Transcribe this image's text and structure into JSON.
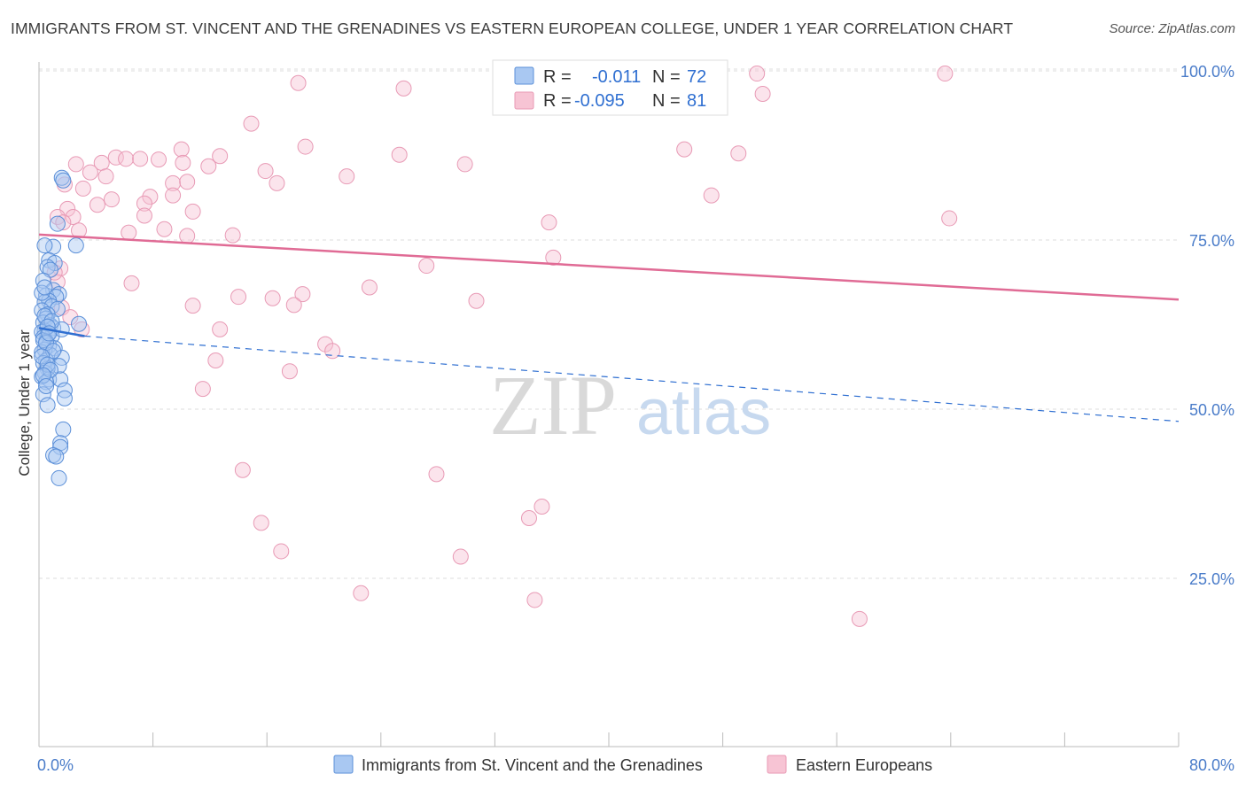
{
  "header": {
    "title": "IMMIGRANTS FROM ST. VINCENT AND THE GRENADINES VS EASTERN EUROPEAN COLLEGE, UNDER 1 YEAR CORRELATION CHART",
    "source": "Source: ZipAtlas.com"
  },
  "watermark": {
    "zip": "ZIP",
    "atlas": "atlas"
  },
  "colors": {
    "blue_fill": "#a9c8f2",
    "blue_stroke": "#5b8fd8",
    "blue_line": "#2f6fd1",
    "pink_fill": "#f7c4d4",
    "pink_stroke": "#e89ab5",
    "pink_line": "#e06b95",
    "tick_label": "#4a7cc9",
    "grid": "#dddddd"
  },
  "chart_data": {
    "type": "scatter",
    "title": "IMMIGRANTS FROM ST. VINCENT AND THE GRENADINES VS EASTERN EUROPEAN COLLEGE, UNDER 1 YEAR CORRELATION CHART",
    "xlabel": "",
    "ylabel": "College, Under 1 year",
    "xlim": [
      0,
      80
    ],
    "ylim": [
      0,
      102
    ],
    "x_tick_labels": [
      "0.0%",
      "80.0%"
    ],
    "y_ticks": [
      {
        "value": 25,
        "label": "25.0%"
      },
      {
        "value": 50,
        "label": "50.0%"
      },
      {
        "value": 75,
        "label": "75.0%"
      },
      {
        "value": 100,
        "label": "100.0%"
      }
    ],
    "legend": {
      "position": "bottom",
      "entries": [
        "Immigrants from St. Vincent and the Grenadines",
        "Eastern Europeans"
      ]
    },
    "stats": [
      {
        "r_label": "R =",
        "r_value": "-0.011",
        "n_label": "N =",
        "n_value": "72"
      },
      {
        "r_label": "R =",
        "r_value": "-0.095",
        "n_label": "N =",
        "n_value": "81"
      }
    ],
    "series": [
      {
        "name": "Immigrants from St. Vincent and the Grenadines",
        "color": "blue",
        "trend_solid": {
          "x": [
            0.0,
            3.2
          ],
          "y": [
            62.0,
            60.8
          ]
        },
        "trend_dashed": {
          "x": [
            3.2,
            80.0
          ],
          "y": [
            60.8,
            48.2
          ]
        },
        "points": [
          [
            1.6,
            84.2
          ],
          [
            1.7,
            83.8
          ],
          [
            1.3,
            77.4
          ],
          [
            1.0,
            74.0
          ],
          [
            2.6,
            74.2
          ],
          [
            0.4,
            74.2
          ],
          [
            0.7,
            72.0
          ],
          [
            1.1,
            71.6
          ],
          [
            0.6,
            71.0
          ],
          [
            0.8,
            70.6
          ],
          [
            0.3,
            69.0
          ],
          [
            1.0,
            67.6
          ],
          [
            1.4,
            67.0
          ],
          [
            0.5,
            66.8
          ],
          [
            1.2,
            66.6
          ],
          [
            0.7,
            66.0
          ],
          [
            0.4,
            65.8
          ],
          [
            0.9,
            65.2
          ],
          [
            1.3,
            64.8
          ],
          [
            0.2,
            64.6
          ],
          [
            0.6,
            64.0
          ],
          [
            0.5,
            63.4
          ],
          [
            0.3,
            62.8
          ],
          [
            0.8,
            62.4
          ],
          [
            1.0,
            62.0
          ],
          [
            0.4,
            61.6
          ],
          [
            0.2,
            61.4
          ],
          [
            0.6,
            61.0
          ],
          [
            0.9,
            60.8
          ],
          [
            0.3,
            60.6
          ],
          [
            1.6,
            61.8
          ],
          [
            2.8,
            62.6
          ],
          [
            0.5,
            60.0
          ],
          [
            0.7,
            59.4
          ],
          [
            1.1,
            59.0
          ],
          [
            0.4,
            58.8
          ],
          [
            0.2,
            58.4
          ],
          [
            0.8,
            58.0
          ],
          [
            1.6,
            57.6
          ],
          [
            0.5,
            57.2
          ],
          [
            0.3,
            56.8
          ],
          [
            1.4,
            56.4
          ],
          [
            0.6,
            56.0
          ],
          [
            0.4,
            55.4
          ],
          [
            0.2,
            54.8
          ],
          [
            0.7,
            54.4
          ],
          [
            1.5,
            54.4
          ],
          [
            0.5,
            54.0
          ],
          [
            1.8,
            52.8
          ],
          [
            0.3,
            52.2
          ],
          [
            1.8,
            51.6
          ],
          [
            0.6,
            50.6
          ],
          [
            1.7,
            47.0
          ],
          [
            1.5,
            45.0
          ],
          [
            1.5,
            44.4
          ],
          [
            1.0,
            43.2
          ],
          [
            1.2,
            43.0
          ],
          [
            1.4,
            39.8
          ],
          [
            0.4,
            63.8
          ],
          [
            0.9,
            63.0
          ],
          [
            0.3,
            60.2
          ],
          [
            0.5,
            59.8
          ],
          [
            1.0,
            58.6
          ],
          [
            0.2,
            57.8
          ],
          [
            0.6,
            56.6
          ],
          [
            0.8,
            55.8
          ],
          [
            0.3,
            55.0
          ],
          [
            0.5,
            53.4
          ],
          [
            0.2,
            67.2
          ],
          [
            0.4,
            68.0
          ],
          [
            0.6,
            62.2
          ],
          [
            0.7,
            61.2
          ]
        ]
      },
      {
        "name": "Eastern Europeans",
        "color": "pink",
        "trend_solid": {
          "x": [
            0.0,
            80.0
          ],
          "y": [
            75.8,
            66.2
          ]
        },
        "points": [
          [
            18.2,
            98.2
          ],
          [
            25.6,
            97.4
          ],
          [
            50.4,
            99.6
          ],
          [
            63.6,
            99.6
          ],
          [
            50.8,
            96.6
          ],
          [
            14.9,
            92.2
          ],
          [
            18.7,
            88.8
          ],
          [
            25.3,
            87.6
          ],
          [
            45.3,
            88.4
          ],
          [
            49.1,
            87.8
          ],
          [
            2.6,
            86.2
          ],
          [
            4.4,
            86.4
          ],
          [
            5.4,
            87.2
          ],
          [
            6.1,
            87.0
          ],
          [
            7.1,
            87.0
          ],
          [
            8.4,
            86.9
          ],
          [
            10.0,
            88.4
          ],
          [
            10.1,
            86.4
          ],
          [
            11.9,
            85.9
          ],
          [
            12.7,
            87.4
          ],
          [
            3.6,
            85.0
          ],
          [
            4.7,
            84.4
          ],
          [
            15.9,
            85.2
          ],
          [
            21.6,
            84.4
          ],
          [
            1.8,
            83.2
          ],
          [
            3.1,
            82.6
          ],
          [
            9.4,
            83.4
          ],
          [
            10.4,
            83.6
          ],
          [
            16.7,
            83.4
          ],
          [
            29.9,
            86.2
          ],
          [
            47.2,
            81.6
          ],
          [
            4.1,
            80.2
          ],
          [
            5.1,
            81.0
          ],
          [
            7.8,
            81.4
          ],
          [
            7.4,
            80.4
          ],
          [
            9.4,
            81.6
          ],
          [
            2.0,
            79.6
          ],
          [
            1.3,
            78.4
          ],
          [
            2.4,
            78.4
          ],
          [
            1.7,
            77.6
          ],
          [
            7.4,
            78.6
          ],
          [
            10.8,
            79.2
          ],
          [
            35.8,
            77.6
          ],
          [
            63.9,
            78.2
          ],
          [
            6.3,
            76.1
          ],
          [
            8.8,
            76.6
          ],
          [
            10.4,
            75.6
          ],
          [
            13.6,
            75.7
          ],
          [
            36.1,
            72.4
          ],
          [
            27.2,
            71.2
          ],
          [
            1.5,
            70.8
          ],
          [
            1.3,
            68.8
          ],
          [
            6.5,
            68.6
          ],
          [
            14.0,
            66.6
          ],
          [
            16.4,
            66.4
          ],
          [
            18.5,
            67.0
          ],
          [
            23.2,
            68.0
          ],
          [
            30.7,
            66.0
          ],
          [
            10.8,
            65.3
          ],
          [
            17.9,
            65.4
          ],
          [
            12.7,
            61.8
          ],
          [
            20.1,
            59.6
          ],
          [
            20.6,
            58.6
          ],
          [
            12.4,
            57.2
          ],
          [
            17.6,
            55.6
          ],
          [
            11.5,
            53.0
          ],
          [
            14.3,
            41.0
          ],
          [
            27.9,
            40.4
          ],
          [
            15.6,
            33.2
          ],
          [
            34.4,
            33.9
          ],
          [
            17.0,
            29.0
          ],
          [
            29.6,
            28.2
          ],
          [
            35.3,
            35.6
          ],
          [
            22.6,
            22.8
          ],
          [
            34.8,
            21.8
          ],
          [
            57.6,
            19.0
          ],
          [
            1.6,
            65.0
          ],
          [
            2.2,
            63.6
          ],
          [
            3.0,
            61.8
          ],
          [
            1.1,
            70.2
          ],
          [
            2.8,
            76.4
          ]
        ]
      }
    ]
  }
}
